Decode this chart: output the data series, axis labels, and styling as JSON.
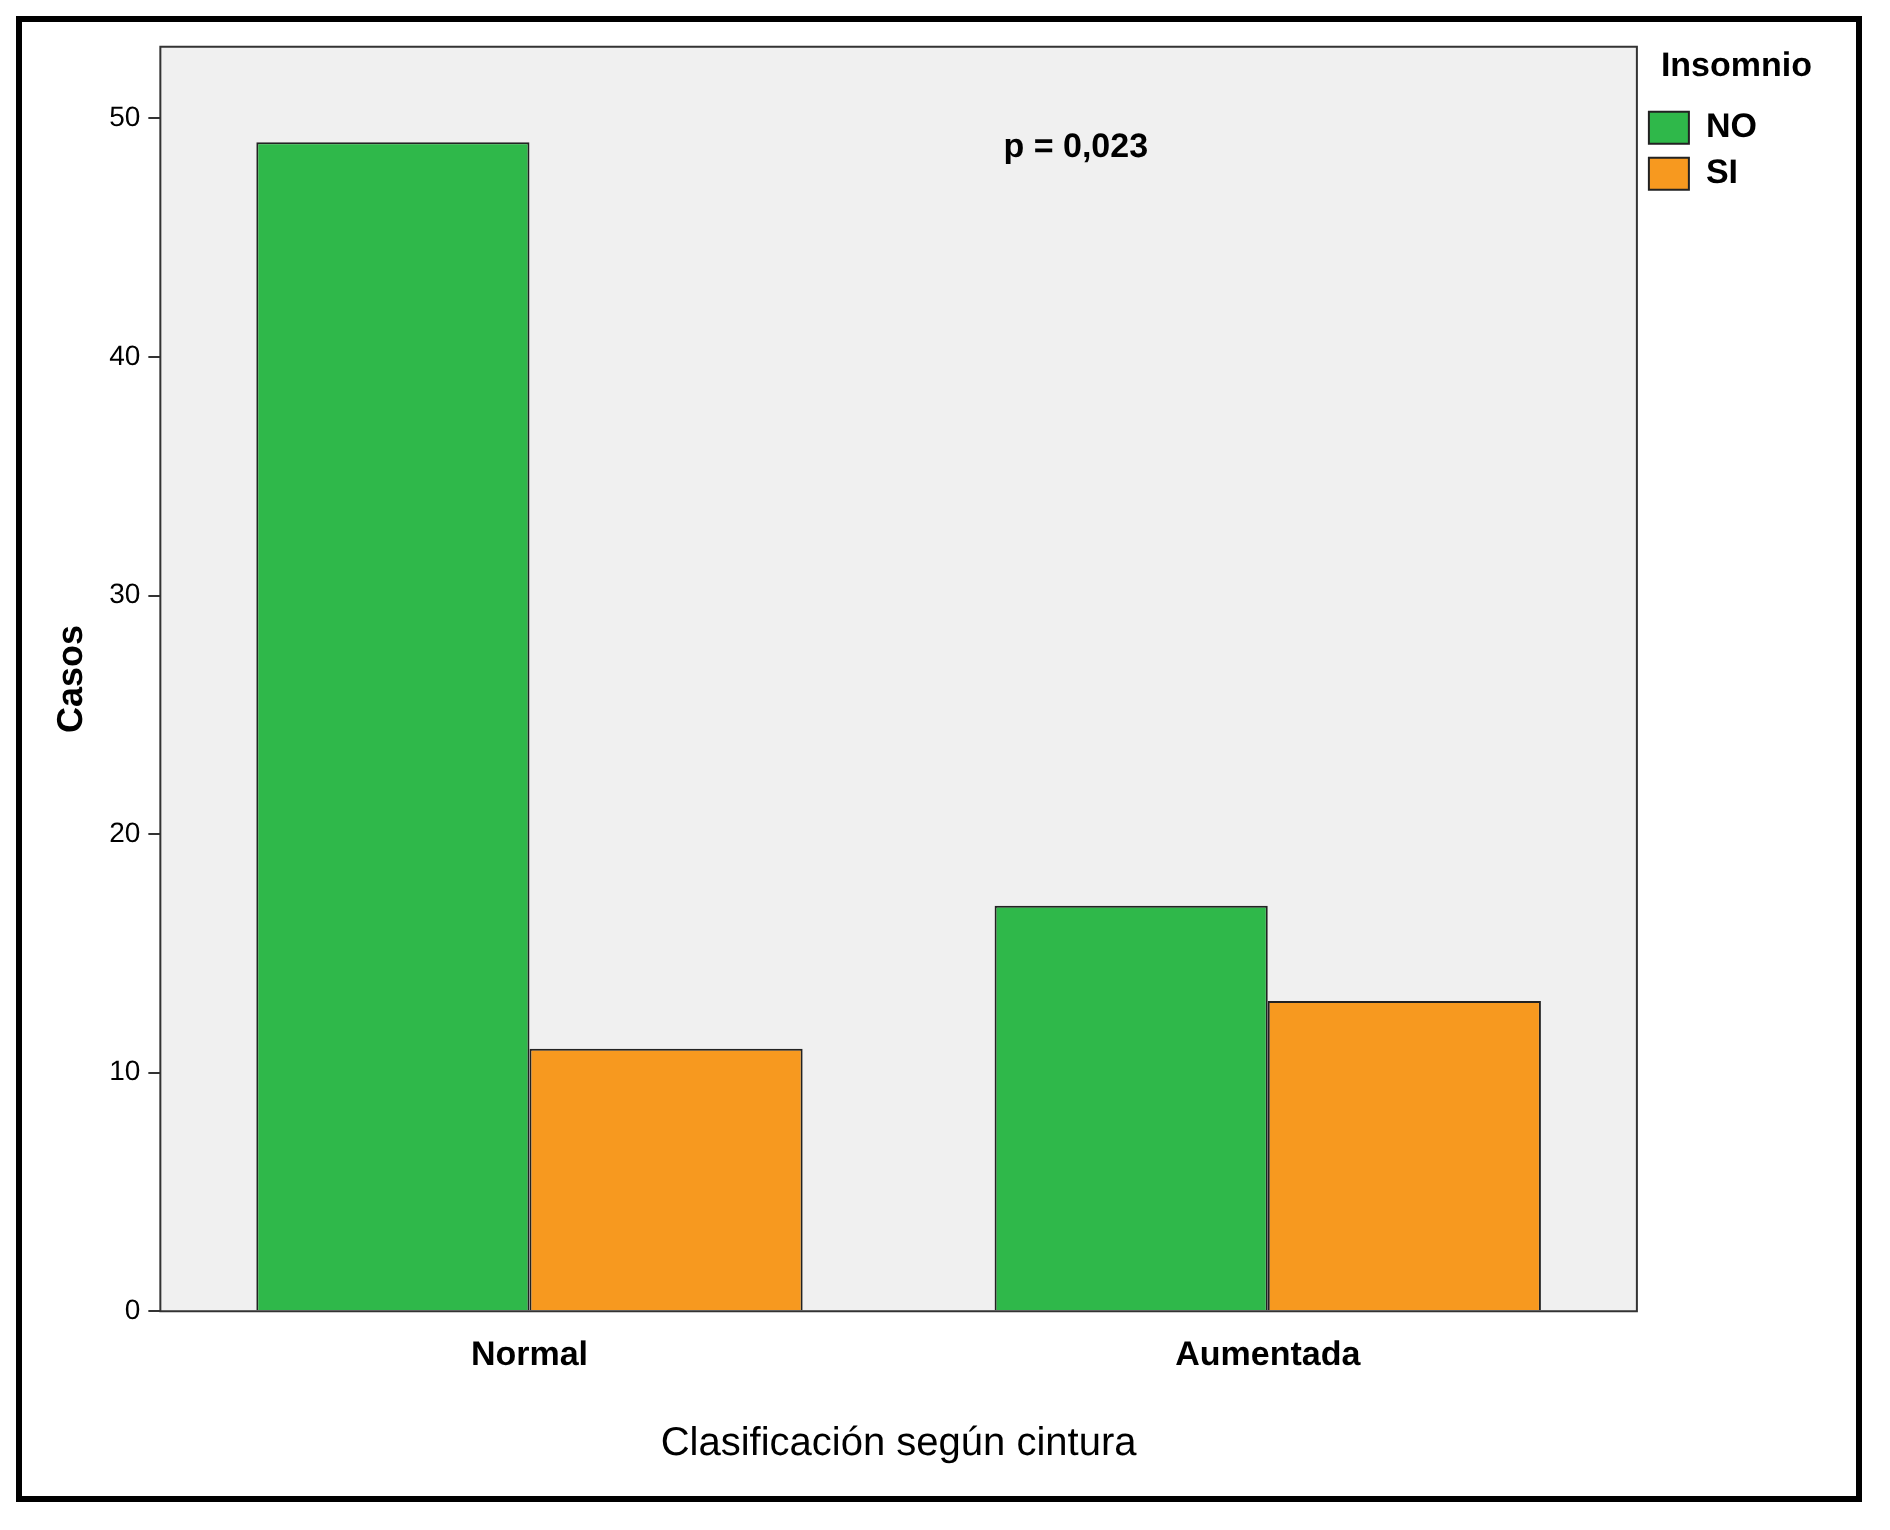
{
  "chart_data": {
    "type": "bar",
    "xlabel": "Clasificación según cintura",
    "ylabel": "Casos",
    "legend_title": "Insomnio",
    "categories": [
      "Normal",
      "Aumentada"
    ],
    "series": [
      {
        "name": "NO",
        "color": "#2fb84a",
        "values": [
          49,
          17
        ]
      },
      {
        "name": "SI",
        "color": "#f7991f",
        "values": [
          11,
          13
        ]
      }
    ],
    "ylim": [
      0,
      53
    ],
    "yticks": [
      0,
      10,
      20,
      30,
      40,
      50
    ],
    "grid": false,
    "legend": "top right",
    "annotations": [
      "p = 0,023"
    ]
  }
}
